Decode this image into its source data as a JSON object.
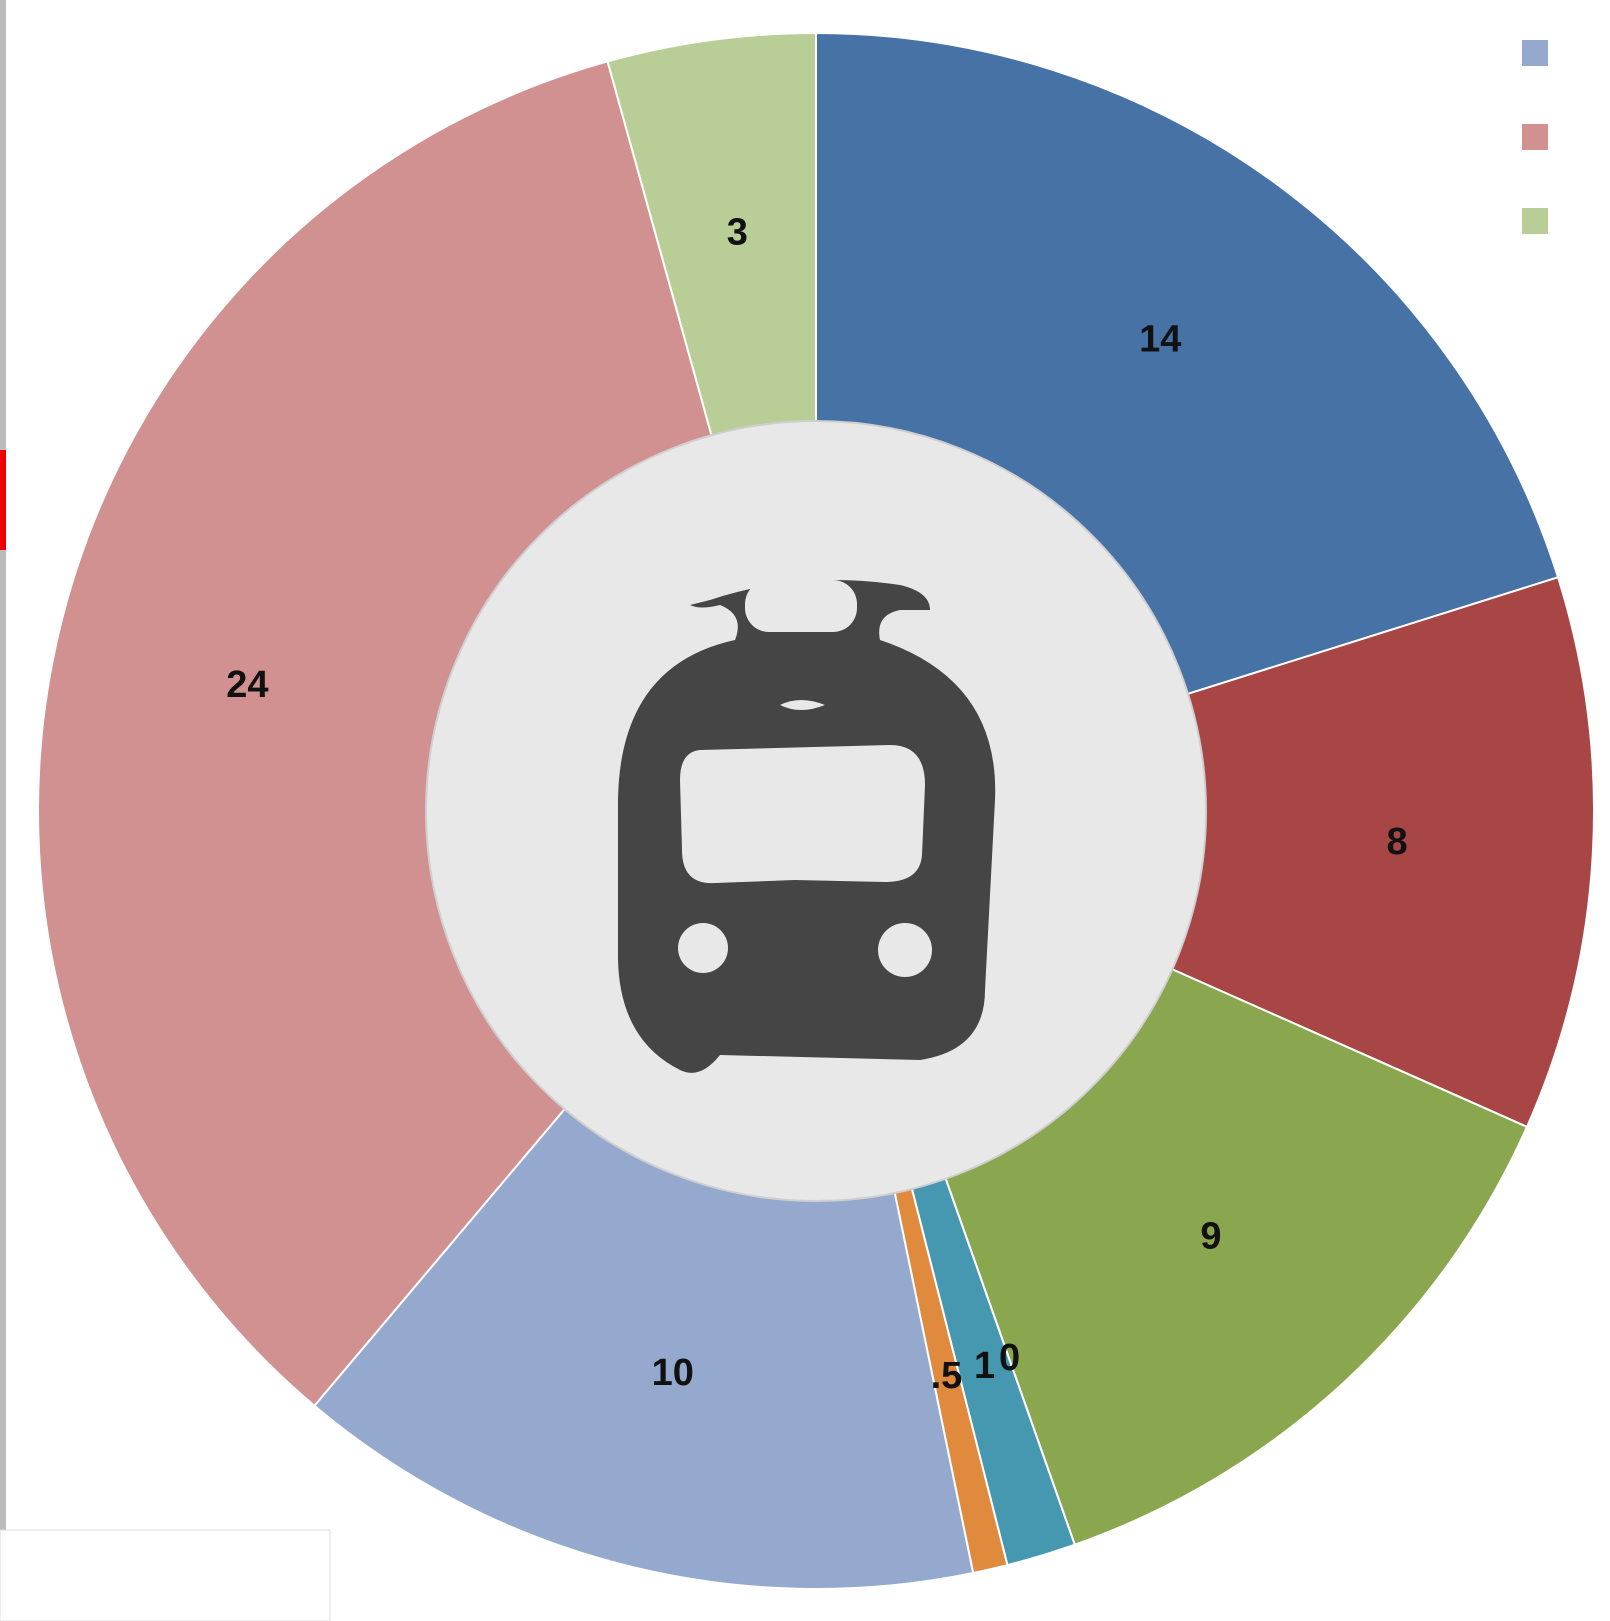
{
  "chart_data": {
    "type": "doughnut",
    "values": [
      14,
      8,
      9,
      0,
      1,
      0.5,
      10,
      24,
      3
    ],
    "value_labels": [
      "14",
      "8",
      "9",
      "0",
      "1",
      ".5",
      "10",
      "24",
      "3"
    ],
    "colors": [
      "#4672a6",
      "#a84646",
      "#8aa64f",
      "#7b5fa0",
      "#4598b0",
      "#e08a3e",
      "#95a9cf",
      "#d19190",
      "#b9cd96"
    ]
  }
}
